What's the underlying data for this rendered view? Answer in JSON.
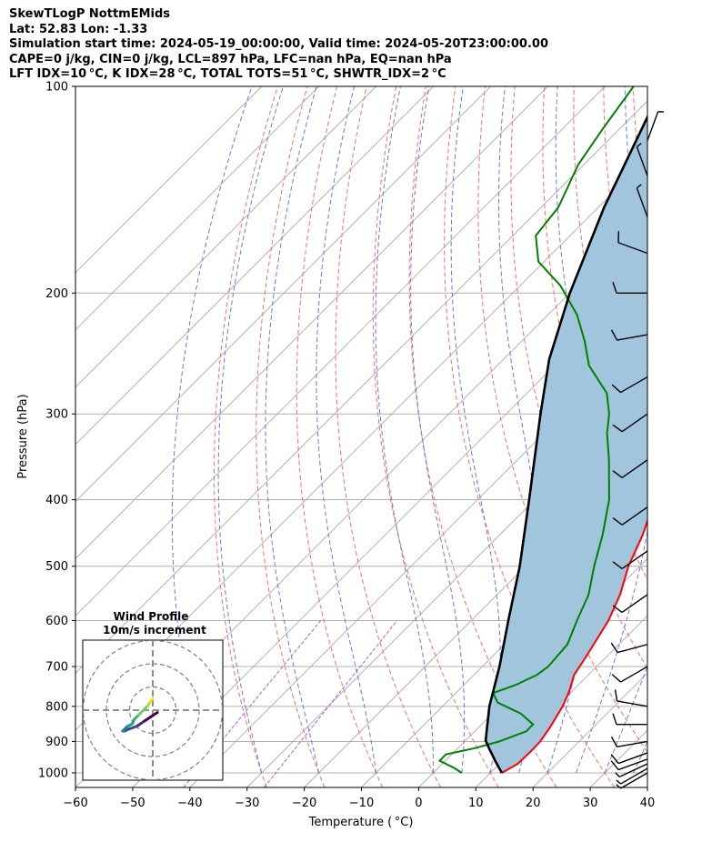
{
  "header": {
    "title": "SkewTLogP NottmEMids",
    "location": "Lat: 52.83   Lon: -1.33",
    "times": "Simulation start time: 2024-05-19_00:00:00, Valid time: 2024-05-20T23:00:00.00",
    "indices1": "CAPE=0 j/kg, CIN=0 j/kg, LCL=897 hPa, LFC=nan hPa, EQ=nan hPa",
    "indices2": "LFT IDX=10 °C, K IDX=28 °C, TOTAL TOTS=51 °C, SHWTR_IDX=2 °C"
  },
  "chart_data": {
    "type": "line",
    "xlabel": "Temperature ( °C)",
    "ylabel": "Pressure (hPa)",
    "xlim": [
      -60,
      40
    ],
    "ylim": [
      1050,
      100
    ],
    "yscale": "log",
    "x_ticks": [
      "−60",
      "−50",
      "−40",
      "−30",
      "−20",
      "−10",
      "0",
      "10",
      "20",
      "30",
      "40"
    ],
    "y_ticks": [
      "1000",
      "900",
      "800",
      "700",
      "600",
      "500",
      "400",
      "300",
      "200",
      "100"
    ],
    "grid": true,
    "series": [
      {
        "name": "temperature",
        "color": "#ff0000",
        "points": [
          [
            1000,
            12
          ],
          [
            970,
            13.2
          ],
          [
            930,
            13.3
          ],
          [
            900,
            13.2
          ],
          [
            860,
            12.5
          ],
          [
            800,
            11
          ],
          [
            760,
            9.5
          ],
          [
            720,
            7.5
          ],
          [
            680,
            6.5
          ],
          [
            600,
            4
          ],
          [
            550,
            1.5
          ],
          [
            500,
            -2
          ],
          [
            450,
            -5
          ],
          [
            400,
            -9
          ],
          [
            350,
            -14
          ],
          [
            320,
            -18.5
          ],
          [
            300,
            -23
          ],
          [
            275,
            -28
          ],
          [
            250,
            -31
          ],
          [
            230,
            -36
          ],
          [
            210,
            -39.5
          ],
          [
            190,
            -44
          ],
          [
            170,
            -48
          ],
          [
            155,
            -50
          ],
          [
            140,
            -52.5
          ],
          [
            120,
            -55
          ],
          [
            110,
            -56
          ],
          [
            100,
            -56.5
          ]
        ]
      },
      {
        "name": "dewpoint",
        "color": "#008000",
        "points": [
          [
            1000,
            5
          ],
          [
            985,
            3
          ],
          [
            960,
            -1
          ],
          [
            940,
            -1
          ],
          [
            920,
            3
          ],
          [
            900,
            6
          ],
          [
            870,
            9
          ],
          [
            850,
            9
          ],
          [
            820,
            5
          ],
          [
            790,
            -1
          ],
          [
            765,
            -3.5
          ],
          [
            745,
            -1
          ],
          [
            720,
            1
          ],
          [
            700,
            1.5
          ],
          [
            650,
            1
          ],
          [
            600,
            -1.5
          ],
          [
            550,
            -4
          ],
          [
            500,
            -8
          ],
          [
            450,
            -12
          ],
          [
            400,
            -17
          ],
          [
            350,
            -24
          ],
          [
            320,
            -29
          ],
          [
            300,
            -32
          ],
          [
            280,
            -36
          ],
          [
            255,
            -44
          ],
          [
            235,
            -49
          ],
          [
            215,
            -55
          ],
          [
            195,
            -63
          ],
          [
            180,
            -71
          ],
          [
            165,
            -76
          ],
          [
            150,
            -77
          ],
          [
            130,
            -81
          ],
          [
            115,
            -83
          ],
          [
            100,
            -85
          ]
        ]
      },
      {
        "name": "parcel",
        "color": "#000000",
        "points": [
          [
            1000,
            12
          ],
          [
            960,
            8.7
          ],
          [
            920,
            5.4
          ],
          [
            897,
            3.5
          ],
          [
            850,
            1
          ],
          [
            800,
            -1.8
          ],
          [
            700,
            -7
          ],
          [
            600,
            -13.5
          ],
          [
            500,
            -21
          ],
          [
            400,
            -31
          ],
          [
            300,
            -44
          ],
          [
            250,
            -52
          ],
          [
            200,
            -60
          ],
          [
            150,
            -69
          ],
          [
            100,
            -80
          ]
        ]
      }
    ],
    "shaded_region": {
      "between": [
        "temperature",
        "parcel"
      ],
      "color": "#a2c5de"
    },
    "reference_lines": {
      "isotherms": {
        "color": "#aaaaaa"
      },
      "dry_adiabats": {
        "color": "#ff6b6b"
      },
      "moist_adiabats": {
        "color": "#6b73ff"
      },
      "mixing_ratio_lines": {
        "color": "#b15ec9"
      }
    },
    "wind_barbs": [
      {
        "p": 1000,
        "wspd": 8,
        "wdir": 240
      },
      {
        "p": 985,
        "wspd": 8,
        "wdir": 240
      },
      {
        "p": 970,
        "wspd": 8,
        "wdir": 245
      },
      {
        "p": 955,
        "wspd": 10,
        "wdir": 250
      },
      {
        "p": 935,
        "wspd": 10,
        "wdir": 250
      },
      {
        "p": 900,
        "wspd": 12,
        "wdir": 260
      },
      {
        "p": 850,
        "wspd": 14,
        "wdir": 270
      },
      {
        "p": 800,
        "wspd": 14,
        "wdir": 280
      },
      {
        "p": 700,
        "wspd": 10,
        "wdir": 240
      },
      {
        "p": 650,
        "wspd": 10,
        "wdir": 255
      },
      {
        "p": 550,
        "wspd": 14,
        "wdir": 235
      },
      {
        "p": 475,
        "wspd": 13,
        "wdir": 235
      },
      {
        "p": 410,
        "wspd": 14,
        "wdir": 235
      },
      {
        "p": 350,
        "wspd": 14,
        "wdir": 235
      },
      {
        "p": 300,
        "wspd": 14,
        "wdir": 235
      },
      {
        "p": 265,
        "wspd": 14,
        "wdir": 240
      },
      {
        "p": 230,
        "wspd": 12,
        "wdir": 260
      },
      {
        "p": 200,
        "wspd": 12,
        "wdir": 270
      },
      {
        "p": 175,
        "wspd": 10,
        "wdir": 290
      },
      {
        "p": 155,
        "wspd": 8,
        "wdir": 340
      },
      {
        "p": 135,
        "wspd": 8,
        "wdir": 340
      },
      {
        "p": 120,
        "wspd": 5,
        "wdir": 20
      }
    ],
    "wind_profile_inset": {
      "title": "Wind Profile",
      "subtitle": "10m/s increment",
      "rings": [
        10,
        20,
        30
      ],
      "hodograph_uv": [
        [
          2,
          -1
        ],
        [
          -1,
          -3
        ],
        [
          -4,
          -5
        ],
        [
          -7,
          -7
        ],
        [
          -10,
          -8
        ],
        [
          -12,
          -9
        ],
        [
          -13,
          -9
        ],
        [
          -11,
          -7
        ],
        [
          -9,
          -6
        ],
        [
          -8,
          -4
        ],
        [
          -6,
          -2
        ],
        [
          -4,
          0
        ],
        [
          -2,
          2
        ],
        [
          -1,
          4
        ],
        [
          0,
          5
        ]
      ],
      "colormap": "viridis"
    }
  }
}
